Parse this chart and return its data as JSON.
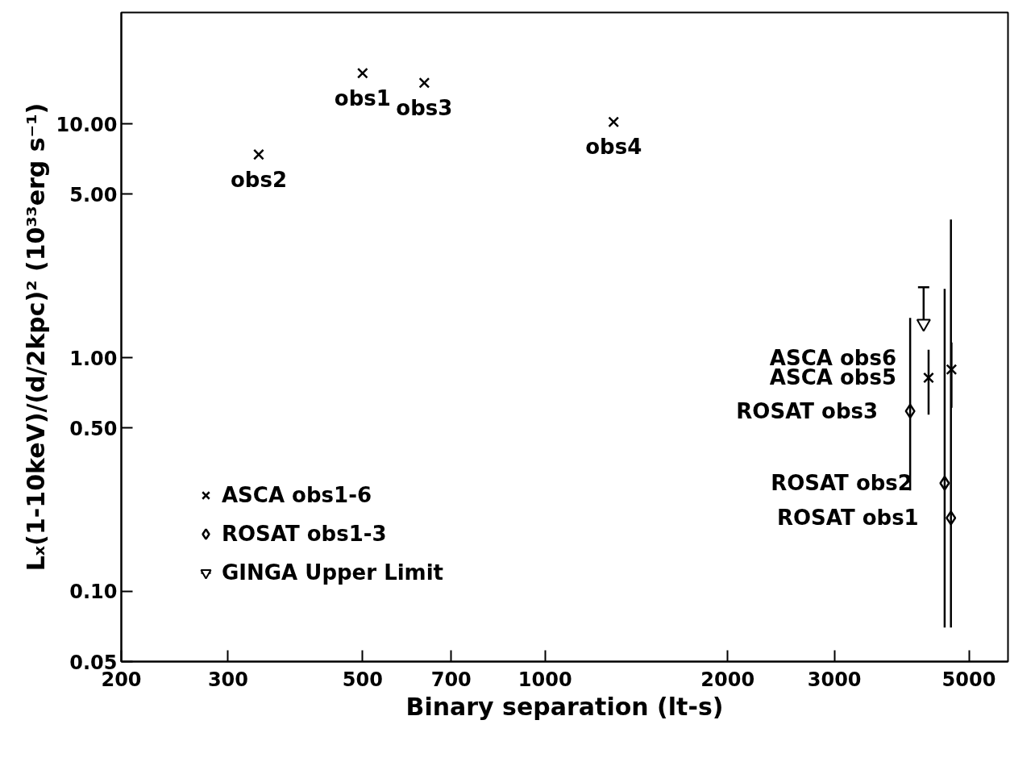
{
  "chart_data": {
    "type": "scatter",
    "xlabel": "Binary separation (lt-s)",
    "ylabel": "Lₓ(1-10keV)/(d/2kpc)² (10³³erg s⁻¹)",
    "log": "xy",
    "xlim": [
      200,
      5800
    ],
    "ylim": [
      0.05,
      30
    ],
    "xticks": [
      200,
      300,
      500,
      700,
      1000,
      2000,
      3000,
      5000
    ],
    "yticks": [
      {
        "value": 0.05,
        "label": "0.05"
      },
      {
        "value": 0.1,
        "label": "0.10"
      },
      {
        "value": 0.5,
        "label": "0.50"
      },
      {
        "value": 1,
        "label": "1.00"
      },
      {
        "value": 5,
        "label": "5.00"
      },
      {
        "value": 10,
        "label": "10.00"
      }
    ],
    "grid": false,
    "legend": "bottom left",
    "series": [
      {
        "name": "ASCA obs1-6",
        "color": "#000000",
        "marker": "cross",
        "x": [
          500,
          337,
          632,
          1297,
          4290,
          4680
        ],
        "values": [
          16.5,
          7.4,
          15,
          10.2,
          0.82,
          0.89
        ],
        "errors": [
          null,
          null,
          null,
          null,
          [
            0.57,
            1.08
          ],
          [
            0.61,
            1.16
          ]
        ]
      },
      {
        "name": "ROSAT obs1-3",
        "color": "#000000",
        "marker": "diamond",
        "x": [
          4670,
          4560,
          4000
        ],
        "values": [
          0.206,
          0.29,
          0.59
        ],
        "errors": [
          [
            0.07,
            3.9
          ],
          [
            0.07,
            1.97
          ],
          [
            0.27,
            1.48
          ]
        ]
      },
      {
        "name": "GINGA Upper Limit",
        "color": "#000000",
        "marker": "triangle",
        "x": [
          4210
        ],
        "values": [
          1.4
        ],
        "errors": [
          [
            1.4,
            2.0
          ]
        ]
      }
    ],
    "annotations": [
      {
        "text": "obs1",
        "x": 500,
        "y": 16.5
      },
      {
        "text": "obs2",
        "x": 337,
        "y": 7.4
      },
      {
        "text": "obs3",
        "x": 632,
        "y": 15
      },
      {
        "text": "obs4",
        "x": 1297,
        "y": 10.2
      },
      {
        "text": "ASCA obs5",
        "x": 4290,
        "y": 0.82
      },
      {
        "text": "ASCA obs6",
        "x": 4290,
        "y": 1.0
      },
      {
        "text": "ROSAT obs1",
        "x": 4670,
        "y": 0.206
      },
      {
        "text": "ROSAT obs2",
        "x": 4560,
        "y": 0.29
      },
      {
        "text": "ROSAT obs3",
        "x": 4000,
        "y": 0.59
      }
    ]
  }
}
